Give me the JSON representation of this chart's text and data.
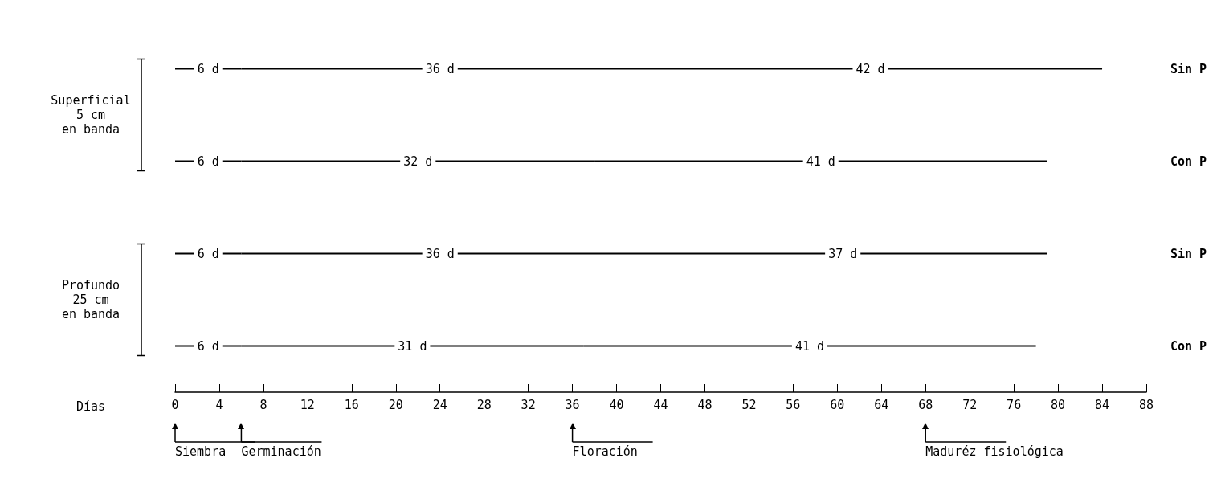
{
  "chart_data": {
    "type": "bar",
    "orientation": "horizontal",
    "stacked": true,
    "categories": [
      "Sin P",
      "Con P",
      "Sin P",
      "Con P"
    ],
    "series": [
      {
        "color": "#000000",
        "values": [
          6,
          6,
          6,
          6
        ],
        "value_labels": [
          "6 d",
          "6 d",
          "6 d",
          "6 d"
        ]
      },
      {
        "color": "#000000",
        "values": [
          36,
          32,
          36,
          31
        ],
        "value_labels": [
          "36 d",
          "32 d",
          "36 d",
          "31 d"
        ]
      },
      {
        "color": "#000000",
        "values": [
          42,
          41,
          37,
          41
        ],
        "value_labels": [
          "42 d",
          "41 d",
          "37 d",
          "41 d"
        ]
      }
    ],
    "xlim": [
      0,
      88
    ],
    "xticks": [
      0,
      4,
      8,
      12,
      16,
      20,
      24,
      28,
      32,
      36,
      40,
      44,
      48,
      52,
      56,
      60,
      64,
      68,
      72,
      76,
      80,
      84,
      88
    ],
    "grid": false,
    "annotations": [
      "Superficial\n5 cm\nen banda",
      "Profundo\n25 cm\nen banda",
      "Días"
    ],
    "ref_lines": [
      {
        "axis": "x",
        "value": 0,
        "label": "Siembra"
      },
      {
        "axis": "x",
        "value": 6,
        "label": "Germinación"
      },
      {
        "axis": "x",
        "value": 36,
        "label": "Floración"
      },
      {
        "axis": "x",
        "value": 68,
        "label": "Maduréz fisiológica"
      }
    ]
  }
}
